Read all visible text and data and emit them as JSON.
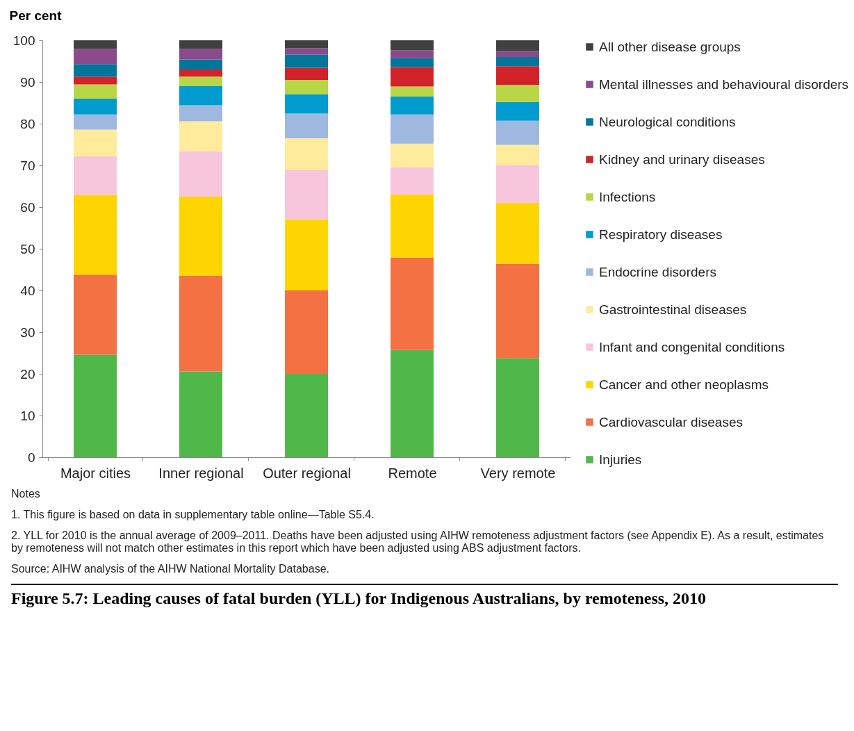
{
  "chart_data": {
    "type": "bar",
    "stacked": true,
    "title": "Figure 5.7: Leading causes of fatal burden (YLL) for Indigenous Australians, by remoteness, 2010",
    "ylabel": "Per cent",
    "categories": [
      "Major cities",
      "Inner regional",
      "Outer regional",
      "Remote",
      "Very remote"
    ],
    "ylim": [
      0,
      100
    ],
    "yticks": [
      0,
      10,
      20,
      30,
      40,
      50,
      60,
      70,
      80,
      90,
      100
    ],
    "grid": false,
    "legend": "right",
    "series": [
      {
        "name": "Injuries",
        "color": "#50b848",
        "values": [
          24.6,
          20.6,
          20.0,
          25.7,
          23.8
        ]
      },
      {
        "name": "Cardiovascular diseases",
        "color": "#f37142",
        "values": [
          19.2,
          23.0,
          20.1,
          22.2,
          22.6
        ]
      },
      {
        "name": "Cancer and other neoplasms",
        "color": "#ffd500",
        "values": [
          19.1,
          18.9,
          17.0,
          15.1,
          14.6
        ]
      },
      {
        "name": "Infant and congenital conditions",
        "color": "#f7c6dc",
        "values": [
          9.3,
          10.9,
          11.8,
          6.6,
          9.0
        ]
      },
      {
        "name": "Gastrointestinal diseases",
        "color": "#ffeb9c",
        "values": [
          6.4,
          7.2,
          7.6,
          5.6,
          4.9
        ]
      },
      {
        "name": "Endocrine disorders",
        "color": "#9eb8df",
        "values": [
          3.6,
          3.8,
          5.9,
          7.0,
          5.8
        ]
      },
      {
        "name": "Respiratory diseases",
        "color": "#009ccf",
        "values": [
          3.8,
          4.7,
          4.7,
          4.3,
          4.5
        ]
      },
      {
        "name": "Infections",
        "color": "#b9d647",
        "values": [
          3.4,
          2.2,
          3.4,
          2.4,
          4.1
        ]
      },
      {
        "name": "Kidney and urinary diseases",
        "color": "#d2232a",
        "values": [
          1.9,
          1.7,
          2.9,
          4.7,
          4.5
        ]
      },
      {
        "name": "Neurological conditions",
        "color": "#00769a",
        "values": [
          3.0,
          2.4,
          3.2,
          2.2,
          2.2
        ]
      },
      {
        "name": "Mental illnesses and behavioural disorders",
        "color": "#8a4a8b",
        "values": [
          3.6,
          2.5,
          1.5,
          1.8,
          1.4
        ]
      },
      {
        "name": "All other disease groups",
        "color": "#404040",
        "values": [
          2.1,
          2.1,
          1.9,
          2.4,
          2.6
        ]
      }
    ],
    "annotations": [
      "Notes",
      "1. This figure is based on data in supplementary table online—Table S5.4.",
      "2. YLL for 2010 is the annual average of 2009–2011. Deaths have been adjusted using AIHW remoteness adjustment factors (see Appendix E). As a result, estimates by remoteness will not match other estimates in this report which have been adjusted using ABS adjustment factors.",
      "Source: AIHW analysis of the AIHW National Mortality Database."
    ]
  }
}
